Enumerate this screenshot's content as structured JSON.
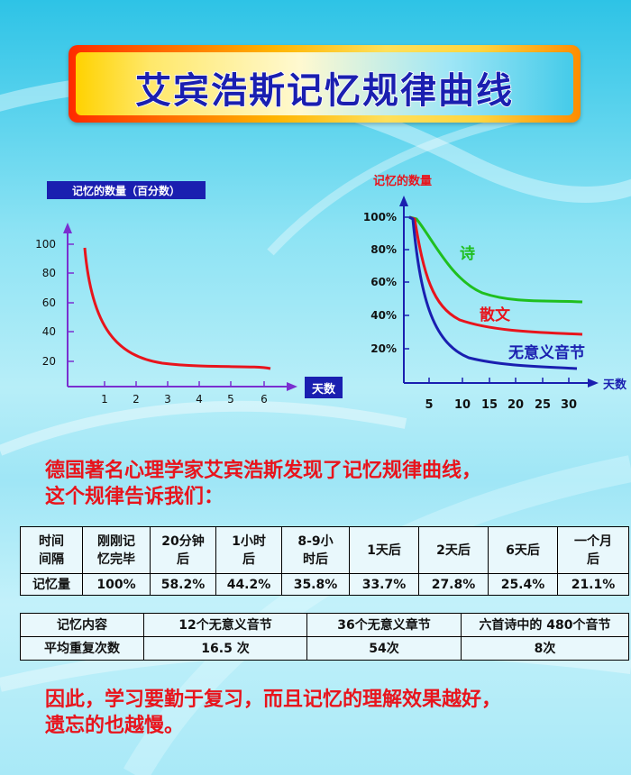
{
  "title": "艾宾浩斯记忆规律曲线",
  "left_chart": {
    "y_title": "记忆的数量（百分数）",
    "x_label": "天数",
    "y_ticks": [
      "100",
      "80",
      "60",
      "40",
      "20"
    ],
    "x_ticks": [
      "1",
      "2",
      "3",
      "4",
      "5",
      "6"
    ]
  },
  "right_chart": {
    "y_title": "记忆的数量",
    "x_label": "天数",
    "y_ticks": [
      "100%",
      "80%",
      "60%",
      "40%",
      "20%"
    ],
    "x_ticks": [
      "5",
      "10",
      "15",
      "20",
      "25",
      "30"
    ],
    "series": [
      {
        "name": "诗",
        "color": "#1fbf1f"
      },
      {
        "name": "散文",
        "color": "#e8141c"
      },
      {
        "name": "无意义音节",
        "color": "#1a1fb0"
      }
    ]
  },
  "intro": {
    "line1": "德国著名心理学家艾宾浩斯发现了记忆规律曲线，",
    "line2": "这个规律告诉我们："
  },
  "table1": {
    "headers": [
      [
        "时间",
        "间隔"
      ],
      [
        "刚刚记",
        "忆完毕"
      ],
      [
        "20分钟",
        "后"
      ],
      [
        "1小时",
        "后"
      ],
      [
        "8-9小",
        "时后"
      ],
      [
        "1天后",
        ""
      ],
      [
        "2天后",
        ""
      ],
      [
        "6天后",
        ""
      ],
      [
        "一个月",
        "后"
      ]
    ],
    "row_label": "记忆量",
    "values": [
      "100%",
      "58.2%",
      "44.2%",
      "35.8%",
      "33.7%",
      "27.8%",
      "25.4%",
      "21.1%"
    ]
  },
  "table2": {
    "headers": [
      "记忆内容",
      "12个无意义音节",
      "36个无意义章节",
      "六首诗中的 480个音节"
    ],
    "row_label": "平均重复次数",
    "values": [
      "16.5 次",
      "54次",
      "8次"
    ]
  },
  "conclusion": {
    "line1": "因此，学习要勤于复习，而且记忆的理解效果越好，",
    "line2": "遗忘的也越慢。"
  },
  "colors": {
    "title": "#1a1fb0",
    "red": "#e8141c",
    "axis": "#7a2fd0"
  }
}
